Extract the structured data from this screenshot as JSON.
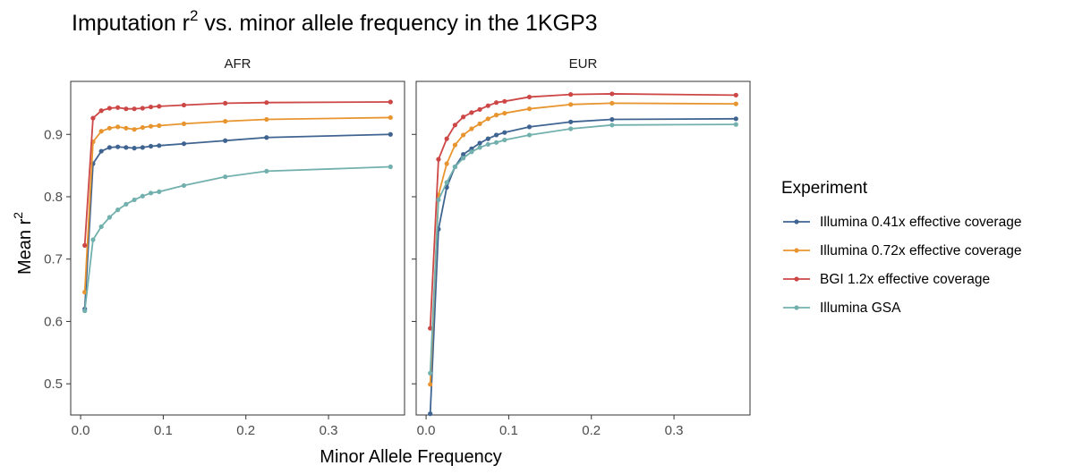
{
  "title": {
    "main": "Imputation r",
    "sup": "2",
    "rest": " vs. minor allele frequency in the 1KGP3"
  },
  "xlabel": "Minor Allele Frequency",
  "ylabel": {
    "main": "Mean  r",
    "sup": "2"
  },
  "legend": {
    "title": "Experiment",
    "items": [
      {
        "label": "Illumina 0.41x effective coverage",
        "color": "#3f6491"
      },
      {
        "label": "Illumina 0.72x effective coverage",
        "color": "#e8952f"
      },
      {
        "label": "BGI 1.2x effective coverage",
        "color": "#cc4746"
      },
      {
        "label": "Illumina GSA",
        "color": "#72b0ad"
      }
    ]
  },
  "chart_data": {
    "type": "line",
    "x": [
      0.005,
      0.015,
      0.025,
      0.035,
      0.045,
      0.055,
      0.065,
      0.075,
      0.085,
      0.095,
      0.125,
      0.175,
      0.225,
      0.375
    ],
    "xlim": [
      -0.012,
      0.392
    ],
    "ylim": [
      0.45,
      0.985
    ],
    "xticks": [
      0.0,
      0.1,
      0.2,
      0.3
    ],
    "xtick_labels": [
      "0.0",
      "0.1",
      "0.2",
      "0.3"
    ],
    "yticks": [
      0.5,
      0.6,
      0.7,
      0.8,
      0.9
    ],
    "ytick_labels": [
      "0.5",
      "0.6",
      "0.7",
      "0.8",
      "0.9"
    ],
    "grid": false,
    "legend_position": "right",
    "panels": [
      {
        "name": "AFR",
        "series": [
          {
            "name": "Illumina 0.41x effective coverage",
            "values": [
              0.62,
              0.853,
              0.873,
              0.879,
              0.88,
              0.879,
              0.878,
              0.879,
              0.881,
              0.882,
              0.885,
              0.89,
              0.895,
              0.9
            ]
          },
          {
            "name": "Illumina 0.72x effective coverage",
            "values": [
              0.647,
              0.888,
              0.905,
              0.91,
              0.912,
              0.91,
              0.908,
              0.911,
              0.913,
              0.914,
              0.917,
              0.921,
              0.924,
              0.927
            ]
          },
          {
            "name": "BGI 1.2x effective coverage",
            "values": [
              0.722,
              0.926,
              0.938,
              0.942,
              0.943,
              0.941,
              0.941,
              0.942,
              0.944,
              0.945,
              0.947,
              0.95,
              0.951,
              0.952
            ]
          },
          {
            "name": "Illumina GSA",
            "values": [
              0.617,
              0.731,
              0.752,
              0.767,
              0.779,
              0.788,
              0.795,
              0.801,
              0.806,
              0.808,
              0.818,
              0.832,
              0.841,
              0.848
            ]
          }
        ]
      },
      {
        "name": "EUR",
        "series": [
          {
            "name": "Illumina 0.41x effective coverage",
            "values": [
              0.452,
              0.748,
              0.815,
              0.848,
              0.868,
              0.877,
              0.886,
              0.893,
              0.899,
              0.903,
              0.912,
              0.92,
              0.924,
              0.925
            ]
          },
          {
            "name": "Illumina 0.72x effective coverage",
            "values": [
              0.499,
              0.803,
              0.853,
              0.883,
              0.899,
              0.909,
              0.917,
              0.925,
              0.931,
              0.934,
              0.941,
              0.948,
              0.95,
              0.949
            ]
          },
          {
            "name": "BGI 1.2x effective coverage",
            "values": [
              0.589,
              0.86,
              0.893,
              0.915,
              0.928,
              0.935,
              0.94,
              0.946,
              0.951,
              0.953,
              0.96,
              0.964,
              0.965,
              0.963
            ]
          },
          {
            "name": "Illumina GSA",
            "values": [
              0.517,
              0.795,
              0.823,
              0.848,
              0.862,
              0.872,
              0.879,
              0.884,
              0.887,
              0.891,
              0.899,
              0.909,
              0.915,
              0.916
            ]
          }
        ]
      }
    ]
  }
}
